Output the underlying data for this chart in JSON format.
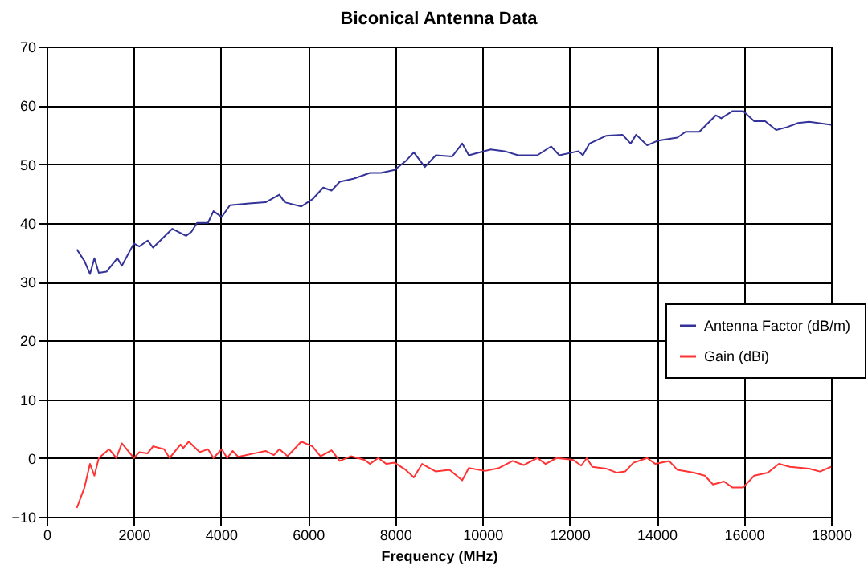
{
  "chart_data": {
    "type": "line",
    "title": "Biconical Antenna Data",
    "xlabel": "Frequency (MHz)",
    "xlim": [
      0,
      18000
    ],
    "xticks": [
      0,
      2000,
      4000,
      6000,
      8000,
      10000,
      12000,
      14000,
      16000,
      18000
    ],
    "ylim": [
      -10,
      70
    ],
    "yticks": [
      -10,
      0,
      10,
      20,
      30,
      40,
      50,
      60,
      70
    ],
    "grid": true,
    "legend": "right",
    "marker": "none",
    "line_style": "solid",
    "series": [
      {
        "name": "Antenna Factor (dB/m)",
        "color": "#333399",
        "x": [
          693,
          869,
          995,
          1096,
          1197,
          1373,
          1625,
          1726,
          2003,
          2129,
          2318,
          2444,
          2885,
          3200,
          3325,
          3451,
          3703,
          3829,
          4018,
          4207,
          4648,
          5026,
          5341,
          5467,
          5845,
          6097,
          6349,
          6538,
          6727,
          7041,
          7419,
          7671,
          7986,
          8238,
          8427,
          8679,
          8931,
          9309,
          9536,
          9687,
          10191,
          10505,
          10820,
          11261,
          11576,
          11765,
          12206,
          12306,
          12458,
          12836,
          13213,
          13402,
          13528,
          13780,
          14032,
          14473,
          14662,
          14977,
          15355,
          15481,
          15733,
          15985,
          16237,
          16489,
          16741,
          16993,
          17245,
          17497,
          18000
        ],
        "values": [
          35.5,
          33.5,
          31.3,
          34,
          31.5,
          31.7,
          34,
          32.7,
          36.5,
          36,
          37,
          35.8,
          39,
          37.8,
          38.5,
          40,
          40,
          42,
          41,
          43,
          43.3,
          43.5,
          44.8,
          43.5,
          42.8,
          44,
          46,
          45.5,
          47,
          47.5,
          48.5,
          48.5,
          49,
          50.5,
          52,
          49.5,
          51.5,
          51.3,
          53.5,
          51.5,
          52.5,
          52.2,
          51.5,
          51.5,
          53,
          51.5,
          52.2,
          51.5,
          53.5,
          54.8,
          55,
          53.5,
          55,
          53.2,
          54,
          54.5,
          55.5,
          55.5,
          58.3,
          57.8,
          59,
          59,
          57.3,
          57.3,
          55.8,
          56.3,
          57,
          57.2,
          56.7
        ]
      },
      {
        "name": "Gain (dBi)",
        "color": "#ff3333",
        "x": [
          693,
          869,
          995,
          1096,
          1197,
          1436,
          1600,
          1726,
          2003,
          2129,
          2318,
          2444,
          2696,
          2822,
          3073,
          3136,
          3262,
          3514,
          3703,
          3829,
          4018,
          4144,
          4270,
          4396,
          4774,
          5026,
          5215,
          5341,
          5530,
          5845,
          6097,
          6286,
          6538,
          6727,
          6979,
          7293,
          7419,
          7608,
          7797,
          7986,
          8238,
          8427,
          8616,
          8931,
          9246,
          9536,
          9687,
          10065,
          10380,
          10694,
          10946,
          11261,
          11450,
          11702,
          12080,
          12269,
          12395,
          12521,
          12836,
          13087,
          13276,
          13465,
          13780,
          13969,
          14284,
          14473,
          14851,
          15103,
          15292,
          15544,
          15733,
          15985,
          16237,
          16552,
          16804,
          17056,
          17497,
          17749,
          18000
        ],
        "values": [
          -8.5,
          -5,
          -1,
          -3,
          0,
          1.5,
          0,
          2.5,
          0,
          1,
          0.8,
          2,
          1.5,
          0,
          2.3,
          1.7,
          2.8,
          1,
          1.5,
          0,
          1.5,
          0,
          1.2,
          0.2,
          0.8,
          1.2,
          0.5,
          1.5,
          0.3,
          2.8,
          2,
          0.3,
          1.3,
          -0.5,
          0.3,
          -0.3,
          -1,
          0,
          -1,
          -0.8,
          -2,
          -3.3,
          -1,
          -2.3,
          -2,
          -3.8,
          -1.7,
          -2.2,
          -1.7,
          -0.5,
          -1.2,
          0,
          -1,
          0,
          -0.3,
          -1.3,
          0,
          -1.5,
          -1.8,
          -2.5,
          -2.3,
          -0.8,
          0,
          -1,
          -0.5,
          -2,
          -2.5,
          -3,
          -4.5,
          -4,
          -5,
          -5,
          -3,
          -2.5,
          -1,
          -1.5,
          -1.8,
          -2.3,
          -1.5
        ]
      }
    ]
  }
}
